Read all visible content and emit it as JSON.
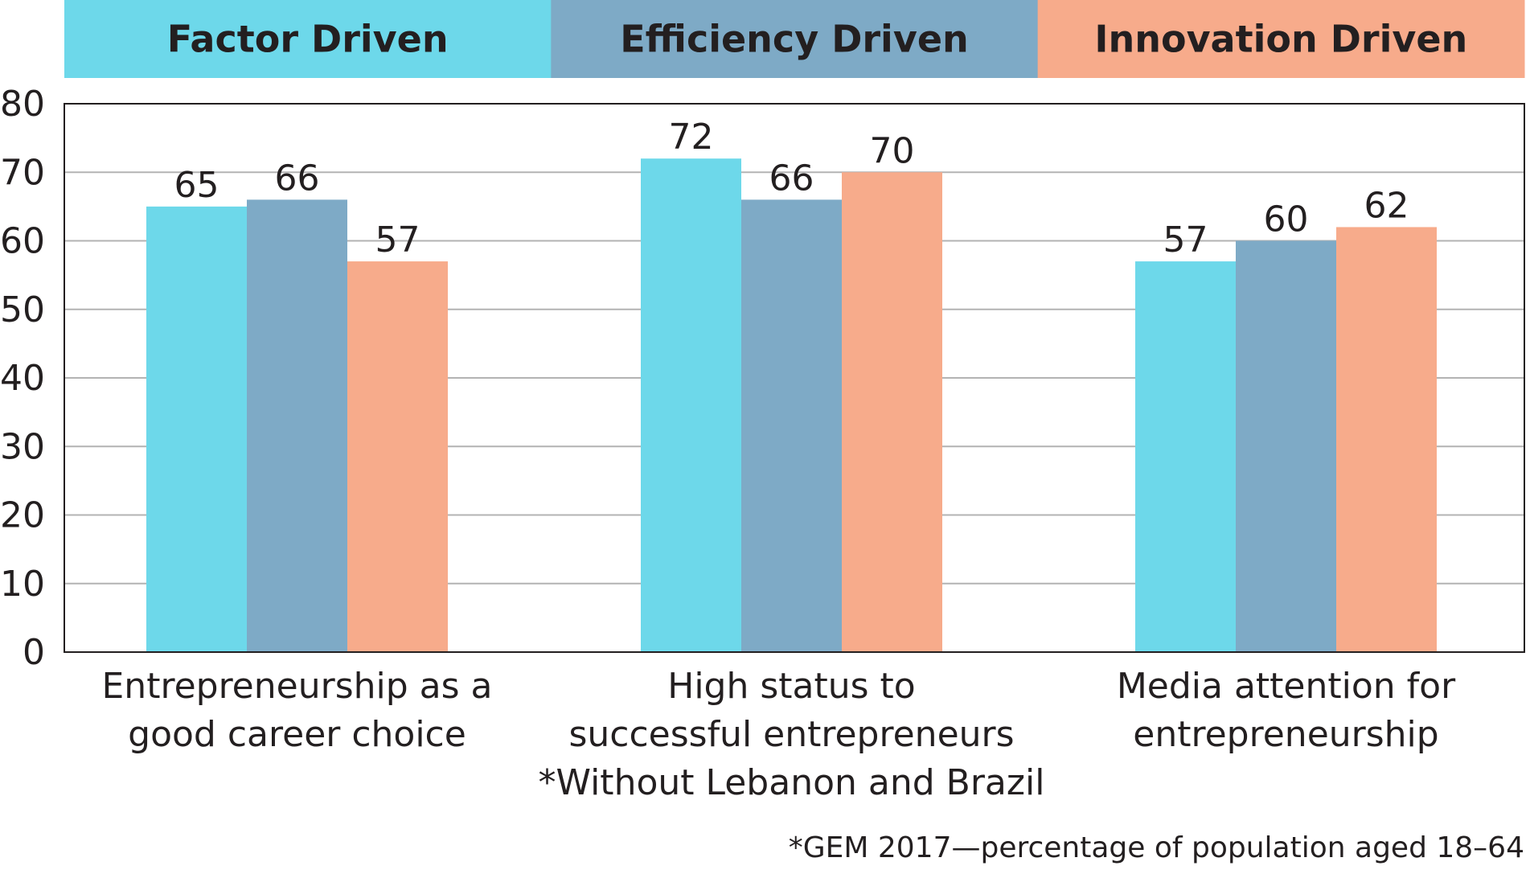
{
  "chart_data": {
    "type": "bar",
    "categories": [
      [
        "Entrepreneurship as a",
        "good career choice"
      ],
      [
        "High status to",
        "successful entrepreneurs",
        "*Without Lebanon and Brazil"
      ],
      [
        "Media attention for",
        "entrepreneurship"
      ]
    ],
    "series": [
      {
        "name": "Factor Driven",
        "color": "#6dd8ea",
        "values": [
          65,
          72,
          57
        ]
      },
      {
        "name": "Efficiency Driven",
        "color": "#7eaac6",
        "values": [
          66,
          66,
          60
        ]
      },
      {
        "name": "Innovation Driven",
        "color": "#f7ab8b",
        "values": [
          57,
          70,
          62
        ]
      }
    ],
    "ylim": [
      0,
      80
    ],
    "yticks": [
      0,
      10,
      20,
      30,
      40,
      50,
      60,
      70,
      80
    ],
    "grid": true,
    "legend_position": "top",
    "source_note": "*GEM 2017—percentage of population aged 18–64"
  }
}
